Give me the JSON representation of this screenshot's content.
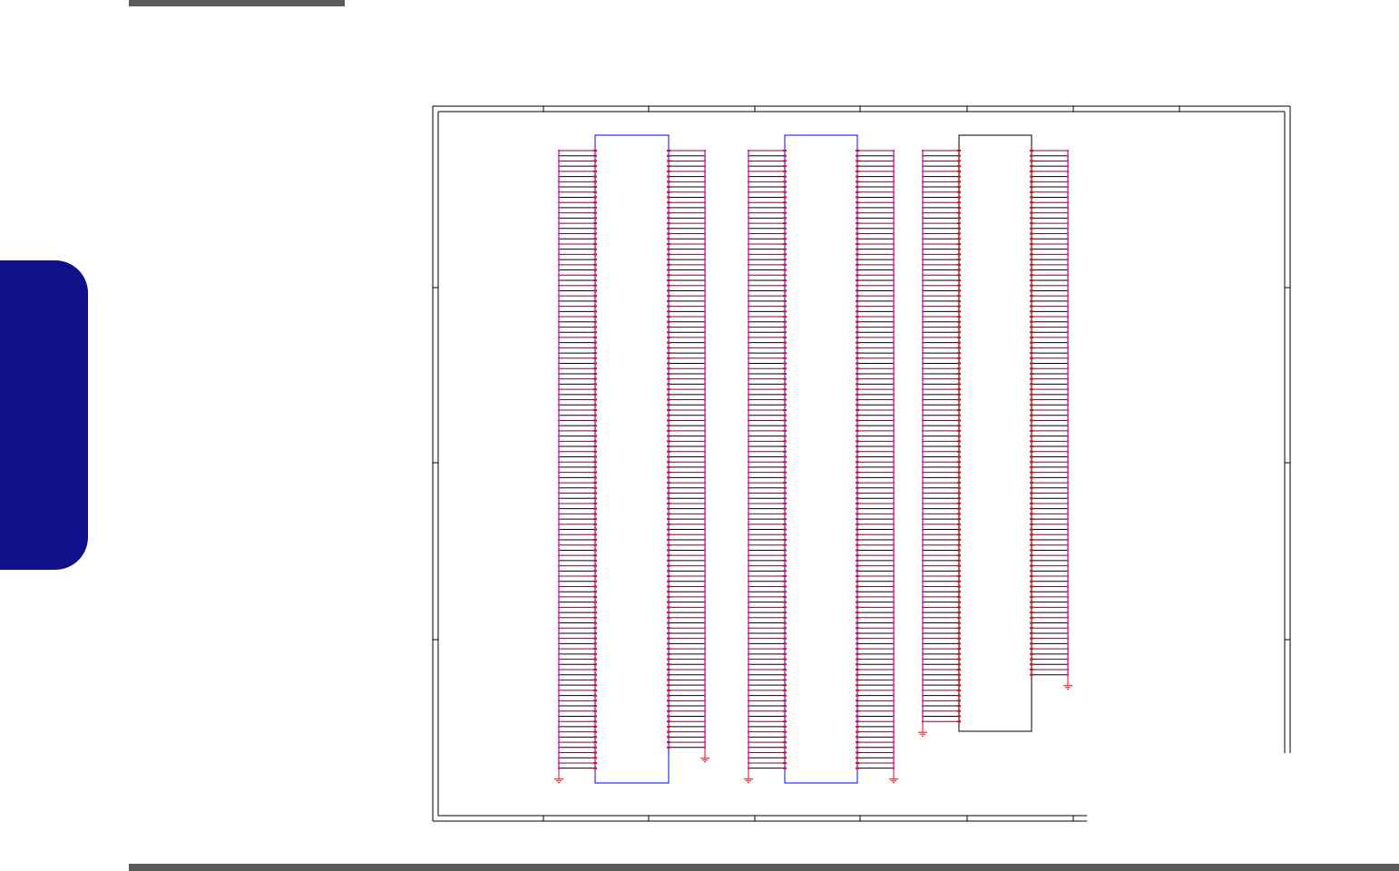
{
  "colors": {
    "header_bar": "#5a5a5a",
    "side_tab": "#10108a",
    "connector_outline": "#0000ff",
    "pin_wire": "#800040",
    "pin_marker": "#ff0000",
    "pin_end": "#ff00ff",
    "ground": "#ff0000"
  },
  "connectors": [
    {
      "left_pins": 120,
      "right_pins": 116,
      "outline": "blue"
    },
    {
      "left_pins": 120,
      "right_pins": 120,
      "outline": "blue"
    },
    {
      "left_pins": 111,
      "right_pins": 102,
      "outline": "black"
    }
  ],
  "icons": [
    "ground-symbol-icon"
  ]
}
